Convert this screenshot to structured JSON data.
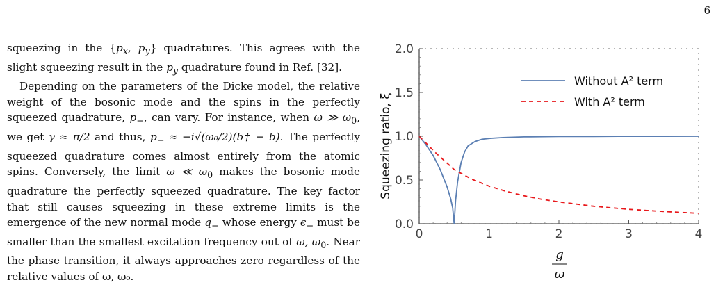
{
  "page_number": "6",
  "body_text": {
    "p1_a": "squeezing in the {",
    "p1_m1": "p",
    "p1_m1_sub": "x",
    "p1_m2": "p",
    "p1_m2_sub": "y",
    "p1_b": "} quadratures. This agrees with the slight squeezing result in the ",
    "p1_m3": "p",
    "p1_m3_sub": "y",
    "p1_c": " quadrature found in Ref. [32].",
    "p2_a": "Depending on the parameters of the Dicke model, the relative weight of the bosonic mode and the spins in the perfectly squeezed quadrature, ",
    "p2_pm": "p",
    "p2_pm_sub": "−",
    "p2_b": ", can vary. For instance, when ",
    "p2_cond1": "ω ≫ ω",
    "p2_cond1_sub": "0",
    "p2_c": ", we get ",
    "p2_gamma": "γ ≈ π/2",
    "p2_d": " and thus, ",
    "p2_eq": "p",
    "p2_eq_sub": "−",
    "p2_eq_rest": " ≈ −i√(ω₀/2)(b† − b)",
    "p2_e": ". The perfectly squeezed quadrature comes almost entirely from the atomic spins. Conversely, the limit ",
    "p2_cond2": "ω ≪ ω",
    "p2_cond2_sub": "0",
    "p2_f": " makes the bosonic mode quadrature the perfectly squeezed quadrature. The key factor that still causes squeezing in these extreme limits is the emergence of the new normal mode ",
    "p2_q": "q",
    "p2_q_sub": "−",
    "p2_g": " whose energy ",
    "p2_eps": "ϵ",
    "p2_eps_sub": "−",
    "p2_h": " must be smaller than the smallest excitation frequency out of ",
    "p2_freqs": "ω, ω",
    "p2_freqs_sub": "0",
    "p2_i": ". Near the phase transition, it always approaches zero regardless of the relative values of ω, ω₀."
  },
  "chart_data": {
    "type": "line",
    "xlabel_num": "g",
    "xlabel_den": "ω",
    "ylabel": "Squeezing ratio, ξ",
    "xlim": [
      0,
      4
    ],
    "ylim": [
      0,
      2
    ],
    "x_ticks": [
      "0",
      "1",
      "2",
      "3",
      "4"
    ],
    "y_ticks": [
      "0.0",
      "0.5",
      "1.0",
      "1.5",
      "2.0"
    ],
    "legend_position": "top-right",
    "series": [
      {
        "name": "Without A² term",
        "color": "#5b7fb3",
        "style": "solid",
        "x": [
          0,
          0.1,
          0.2,
          0.3,
          0.4,
          0.45,
          0.48,
          0.5,
          0.52,
          0.55,
          0.6,
          0.65,
          0.7,
          0.8,
          0.9,
          1.0,
          1.2,
          1.5,
          2.0,
          2.5,
          3.0,
          3.5,
          4.0
        ],
        "y": [
          1.0,
          0.9,
          0.78,
          0.62,
          0.42,
          0.29,
          0.18,
          0.0,
          0.26,
          0.48,
          0.7,
          0.82,
          0.89,
          0.94,
          0.965,
          0.975,
          0.985,
          0.993,
          0.997,
          0.998,
          0.999,
          0.999,
          1.0
        ]
      },
      {
        "name": "With A² term",
        "color": "#e8181b",
        "style": "dashed",
        "x": [
          0,
          0.25,
          0.5,
          0.75,
          1.0,
          1.25,
          1.5,
          1.75,
          2.0,
          2.5,
          3.0,
          3.5,
          4.0
        ],
        "y": [
          1.0,
          0.8,
          0.62,
          0.51,
          0.43,
          0.37,
          0.32,
          0.28,
          0.25,
          0.2,
          0.165,
          0.14,
          0.12
        ]
      }
    ]
  }
}
